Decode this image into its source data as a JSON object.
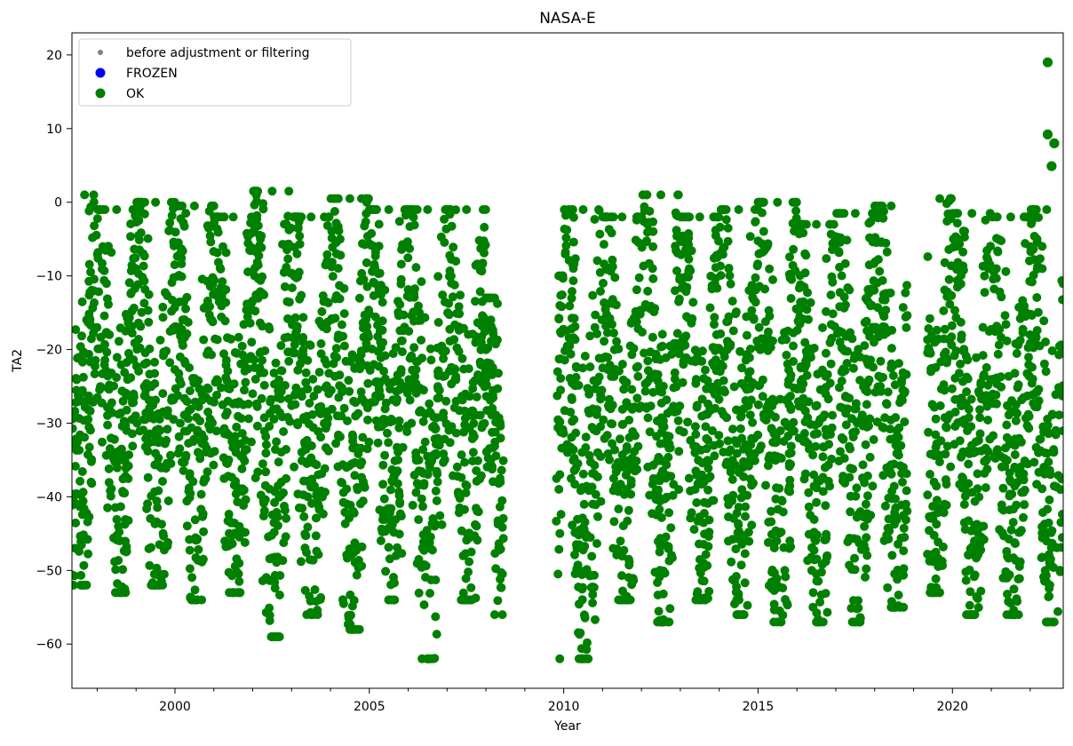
{
  "chart_data": {
    "type": "scatter",
    "title": "NASA-E",
    "xlabel": "Year",
    "ylabel": "TA2",
    "xlim": [
      1997.35,
      2022.85
    ],
    "ylim": [
      -66,
      23
    ],
    "x_ticks": [
      2000,
      2005,
      2010,
      2015,
      2020
    ],
    "x_minor_step": 1,
    "y_ticks": [
      -60,
      -50,
      -40,
      -30,
      -20,
      -10,
      0,
      10,
      20
    ],
    "grid": false,
    "legend": {
      "placement": "upper-left",
      "entries": [
        {
          "label": "before adjustment or filtering",
          "color": "#808080",
          "marker": "small-dot"
        },
        {
          "label": "FROZEN",
          "color": "#0000ff",
          "marker": "dot"
        },
        {
          "label": "OK",
          "color": "#008000",
          "marker": "dot"
        }
      ]
    },
    "series": [
      {
        "name": "OK",
        "color": "#008000",
        "style": "dense daily/hourly points forming annual seasonal bands",
        "annual_envelope": [
          {
            "year_start": 1997.35,
            "year_end": 1998.0,
            "min": -52,
            "max": 1
          },
          {
            "year_start": 1998.0,
            "year_end": 1999.0,
            "min": -53,
            "max": -1
          },
          {
            "year_start": 1999.0,
            "year_end": 2000.0,
            "min": -52,
            "max": 0
          },
          {
            "year_start": 2000.0,
            "year_end": 2001.0,
            "min": -54,
            "max": -0.5
          },
          {
            "year_start": 2001.0,
            "year_end": 2002.0,
            "min": -53,
            "max": -2
          },
          {
            "year_start": 2002.0,
            "year_end": 2003.0,
            "min": -59,
            "max": 1.5
          },
          {
            "year_start": 2003.0,
            "year_end": 2004.0,
            "min": -56,
            "max": -2
          },
          {
            "year_start": 2004.0,
            "year_end": 2005.0,
            "min": -58,
            "max": 0.5
          },
          {
            "year_start": 2005.0,
            "year_end": 2006.0,
            "min": -54,
            "max": -1
          },
          {
            "year_start": 2006.0,
            "year_end": 2007.0,
            "min": -62,
            "max": -1
          },
          {
            "year_start": 2007.0,
            "year_end": 2008.0,
            "min": -54,
            "max": -1
          },
          {
            "year_start": 2008.0,
            "year_end": 2008.45,
            "min": -56,
            "max": -13
          },
          {
            "year_start": 2009.8,
            "year_end": 2010.0,
            "min": -62,
            "max": -10
          },
          {
            "year_start": 2010.0,
            "year_end": 2011.0,
            "min": -62,
            "max": -1
          },
          {
            "year_start": 2011.0,
            "year_end": 2012.0,
            "min": -54,
            "max": -2
          },
          {
            "year_start": 2012.0,
            "year_end": 2013.0,
            "min": -57,
            "max": 1
          },
          {
            "year_start": 2013.0,
            "year_end": 2014.0,
            "min": -54,
            "max": -2
          },
          {
            "year_start": 2014.0,
            "year_end": 2015.0,
            "min": -56,
            "max": -1
          },
          {
            "year_start": 2015.0,
            "year_end": 2016.0,
            "min": -57,
            "max": 0
          },
          {
            "year_start": 2016.0,
            "year_end": 2017.0,
            "min": -57,
            "max": -3
          },
          {
            "year_start": 2017.0,
            "year_end": 2018.0,
            "min": -57,
            "max": -1.5
          },
          {
            "year_start": 2018.0,
            "year_end": 2018.85,
            "min": -55,
            "max": -0.5
          },
          {
            "year_start": 2019.35,
            "year_end": 2020.0,
            "min": -53,
            "max": 0.5
          },
          {
            "year_start": 2020.0,
            "year_end": 2021.0,
            "min": -56,
            "max": -1.5
          },
          {
            "year_start": 2021.0,
            "year_end": 2022.0,
            "min": -56,
            "max": -2
          },
          {
            "year_start": 2022.0,
            "year_end": 2022.85,
            "min": -57,
            "max": -1
          }
        ],
        "outliers": [
          {
            "x": 2022.45,
            "y": 19
          },
          {
            "x": 2022.45,
            "y": 9.2
          },
          {
            "x": 2022.62,
            "y": 8
          },
          {
            "x": 2022.55,
            "y": 4.9
          }
        ]
      }
    ]
  }
}
